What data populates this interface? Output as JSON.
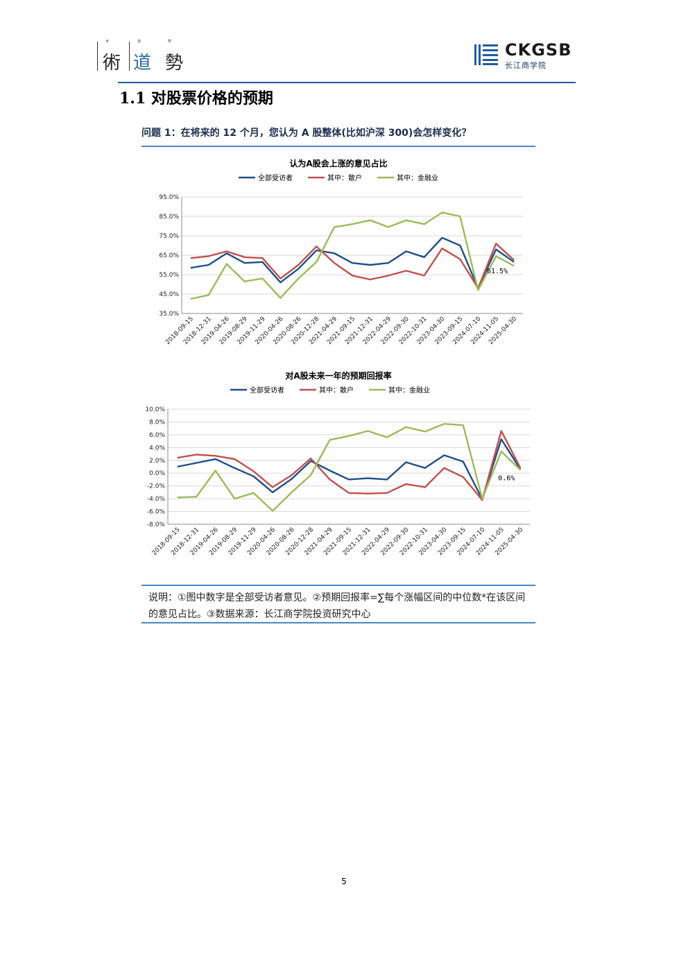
{
  "header": {
    "left_logo": {
      "small_labels": [
        "术",
        "道",
        "势"
      ],
      "chars": [
        "術",
        "道",
        "勢"
      ]
    },
    "right_logo": {
      "english": "CKGSB",
      "chinese": "长江商学院",
      "color": "#1f5aa0"
    }
  },
  "section_title": "1.1 对股票价格的预期",
  "question": "问题 1：在将来的 12 个月，您认为 A 股整体(比如沪深 300)会怎样变化？",
  "colors": {
    "all_respondents": "#1f4e8a",
    "retail": "#c0504d",
    "finance": "#9bbb59",
    "rule": "#4a86c5"
  },
  "chart_data": [
    {
      "type": "line",
      "title": "认为A股会上涨的意见占比",
      "legend_position": "top",
      "categories": [
        "2018-09-15",
        "2018-12-31",
        "2019-04-26",
        "2019-08-29",
        "2019-11-29",
        "2020-04-26",
        "2020-08-26",
        "2020-12-28",
        "2021-04-29",
        "2021-09-15",
        "2021-12-31",
        "2022-04-29",
        "2022-09-30",
        "2022-10-31",
        "2023-04-30",
        "2023-09-15",
        "2024-07-10",
        "2024-11-05",
        "2025-04-30"
      ],
      "ylim": [
        35,
        95
      ],
      "yticks": [
        "35.0%",
        "45.0%",
        "55.0%",
        "65.0%",
        "75.0%",
        "85.0%",
        "95.0%"
      ],
      "grid": true,
      "series": [
        {
          "name": "全部受访者",
          "values": [
            58.5,
            60,
            66,
            61,
            61.5,
            51,
            58,
            67.5,
            66,
            61,
            60,
            61,
            67,
            64,
            74,
            70,
            48,
            68,
            61.5
          ]
        },
        {
          "name": "其中：散户",
          "values": [
            63.5,
            64.5,
            67,
            64,
            63.5,
            53,
            60,
            69.5,
            61,
            54.5,
            52.5,
            54.5,
            57,
            54.5,
            68.5,
            63,
            48,
            71,
            62.5
          ]
        },
        {
          "name": "其中：金融业",
          "values": [
            42.5,
            44.5,
            60.5,
            51.5,
            53,
            43,
            53,
            61.5,
            79.5,
            81,
            83,
            79.5,
            83,
            81,
            87,
            85,
            47,
            64.5,
            59.5
          ]
        }
      ],
      "annotation": "61.5%"
    },
    {
      "type": "line",
      "title": "对A股未来一年的预期回报率",
      "legend_position": "top",
      "categories": [
        "2018-09-15",
        "2018-12-31",
        "2019-04-26",
        "2019-08-29",
        "2019-11-29",
        "2020-04-26",
        "2020-08-26",
        "2020-12-28",
        "2021-04-29",
        "2021-09-15",
        "2021-12-31",
        "2022-04-29",
        "2022-09-30",
        "2022-10-31",
        "2023-04-30",
        "2023-09-15",
        "2024-07-10",
        "2024-11-05",
        "2025-04-30"
      ],
      "ylim": [
        -8,
        10
      ],
      "yticks": [
        "-8.0%",
        "-6.0%",
        "-4.0%",
        "-2.0%",
        "0.0%",
        "2.0%",
        "4.0%",
        "6.0%",
        "8.0%",
        "10.0%"
      ],
      "grid": true,
      "series": [
        {
          "name": "全部受访者",
          "values": [
            1.0,
            1.6,
            2.2,
            0.8,
            -0.5,
            -3.0,
            -0.9,
            1.9,
            0.4,
            -1.0,
            -0.8,
            -1.0,
            1.7,
            0.8,
            2.8,
            1.8,
            -4.1,
            5.3,
            0.6
          ]
        },
        {
          "name": "其中：散户",
          "values": [
            2.4,
            2.9,
            2.7,
            2.2,
            0.3,
            -2.2,
            -0.3,
            2.3,
            -1.0,
            -3.1,
            -3.2,
            -3.1,
            -1.7,
            -2.2,
            0.8,
            -0.6,
            -4.2,
            6.6,
            0.8
          ]
        },
        {
          "name": "其中：金融业",
          "values": [
            -3.8,
            -3.7,
            0.4,
            -4.0,
            -3.1,
            -5.9,
            -3.0,
            -0.3,
            5.2,
            5.8,
            6.6,
            5.6,
            7.2,
            6.5,
            7.7,
            7.5,
            -4.0,
            3.4,
            0.5
          ]
        }
      ],
      "annotation": "0.6%"
    }
  ],
  "note": {
    "text": "说明：①图中数字是全部受访者意见。②预期回报率=∑每个涨幅区间的中位数*在该区间的意见占比。③数据来源：长江商学院投资研究中心"
  },
  "page_number": "5"
}
